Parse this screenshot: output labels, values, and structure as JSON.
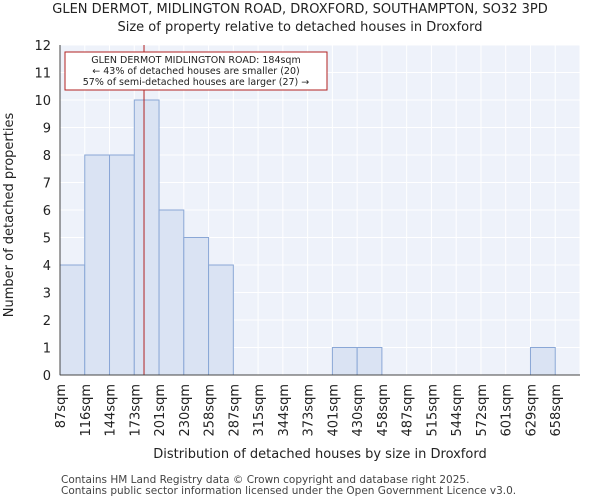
{
  "chart_data": {
    "type": "bar",
    "title": "GLEN DERMOT, MIDLINGTON ROAD, DROXFORD, SOUTHAMPTON, SO32 3PD",
    "subtitle": "Size of property relative to detached houses in Droxford",
    "xlabel": "Distribution of detached houses by size in Droxford",
    "ylabel": "Number of detached properties",
    "categories": [
      "87sqm",
      "116sqm",
      "144sqm",
      "173sqm",
      "201sqm",
      "230sqm",
      "258sqm",
      "287sqm",
      "315sqm",
      "344sqm",
      "373sqm",
      "401sqm",
      "430sqm",
      "458sqm",
      "487sqm",
      "515sqm",
      "544sqm",
      "572sqm",
      "601sqm",
      "629sqm",
      "658sqm"
    ],
    "values": [
      4,
      8,
      8,
      10,
      6,
      5,
      4,
      0,
      0,
      0,
      0,
      1,
      1,
      0,
      0,
      0,
      0,
      0,
      0,
      1,
      0
    ],
    "ylim": [
      0,
      12
    ],
    "yticks": [
      0,
      1,
      2,
      3,
      4,
      5,
      6,
      7,
      8,
      9,
      10,
      11,
      12
    ],
    "grid": true,
    "bar_color": "#dae3f3",
    "bar_edge_color": "#8aa7d6",
    "marker": {
      "value": 184,
      "color": "#b22222",
      "annotation": [
        "GLEN DERMOT MIDLINGTON ROAD: 184sqm",
        "← 43% of detached houses are smaller (20)",
        "57% of semi-detached houses are larger (27) →"
      ]
    }
  },
  "footer": {
    "line1": "Contains HM Land Registry data © Crown copyright and database right 2025.",
    "line2": "Contains public sector information licensed under the Open Government Licence v3.0."
  }
}
